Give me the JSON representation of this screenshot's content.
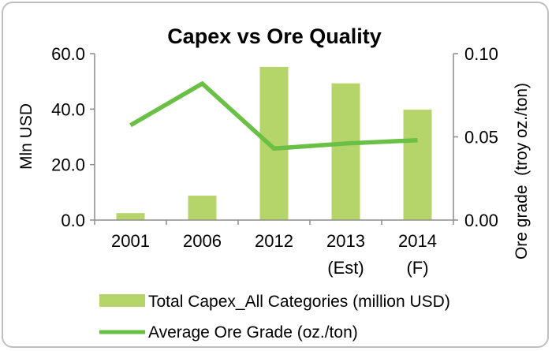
{
  "chart_data": {
    "type": "bar+line",
    "title": "Capex vs Ore Quality",
    "categories": [
      [
        "2001"
      ],
      [
        "2006"
      ],
      [
        "2012"
      ],
      [
        "2013",
        "(Est)"
      ],
      [
        "2014",
        "(F)"
      ]
    ],
    "series": [
      {
        "name": "Total Capex_All Categories (million USD)",
        "type": "bar",
        "axis": "left",
        "color": "#b5d56a",
        "values": [
          2.5,
          8.8,
          55.2,
          49.3,
          39.8
        ]
      },
      {
        "name": "Average Ore Grade (oz./ton)",
        "type": "line",
        "axis": "right",
        "color": "#6abf45",
        "values": [
          0.057,
          0.082,
          0.043,
          0.046,
          0.048
        ]
      }
    ],
    "y_left": {
      "label": "Mln USD",
      "ylim": [
        0,
        60
      ],
      "ticks": [
        "0.0",
        "20.0",
        "40.0",
        "60.0"
      ],
      "tick_values": [
        0,
        20,
        40,
        60
      ]
    },
    "y_right": {
      "label": "Ore grade  (troy oz./ton)",
      "ylim": [
        0,
        0.1
      ],
      "ticks": [
        "0.00",
        "0.05",
        "0.10"
      ],
      "tick_values": [
        0,
        0.05,
        0.1
      ]
    },
    "grid": false,
    "legend": "bottom"
  }
}
